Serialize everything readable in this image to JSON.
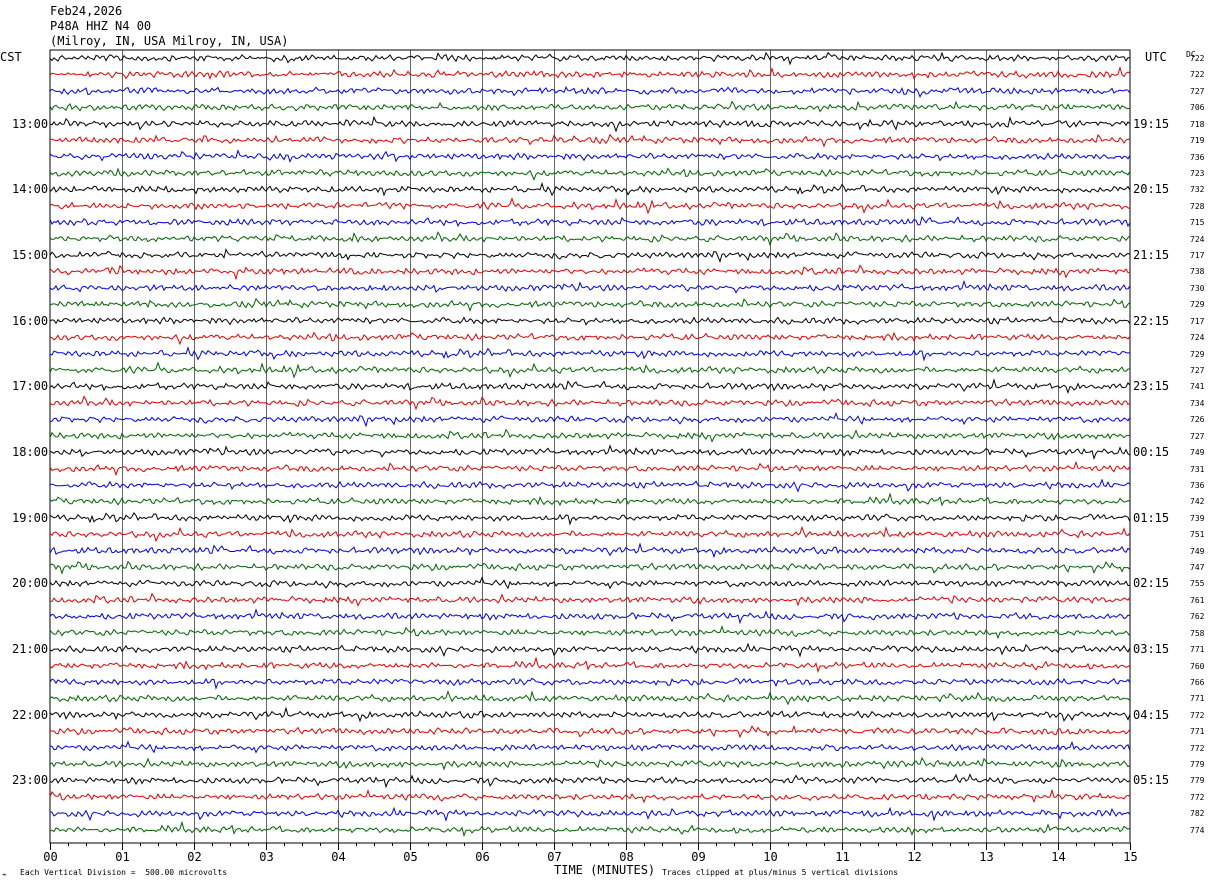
{
  "header": {
    "date": "Feb24,2026",
    "station": "P48A HHZ N4 00",
    "location": "(Milroy, IN, USA Milroy, IN, USA)"
  },
  "left_tz": "CST",
  "right_tz": "UTC",
  "dc_title": "DC",
  "footer": {
    "scale": "Each Vertical Division =  500.00 microvolts",
    "clip": "Traces clipped at plus/minus 5 vertical divisions",
    "xlabel": "TIME (MINUTES)"
  },
  "colors": {
    "trace_cycle": [
      "#000000",
      "#e00000",
      "#0000e0",
      "#006400"
    ],
    "grid": "#000000"
  },
  "chart_data": {
    "type": "line",
    "title": "P48A HHZ N4 00",
    "xlabel": "TIME (MINUTES)",
    "xlim": [
      0,
      15
    ],
    "x_ticks": [
      "00",
      "01",
      "02",
      "03",
      "04",
      "05",
      "06",
      "07",
      "08",
      "09",
      "10",
      "11",
      "12",
      "13",
      "14",
      "15"
    ],
    "left_time_labels": [
      "13:00",
      "14:00",
      "15:00",
      "16:00",
      "17:00",
      "18:00",
      "19:00",
      "20:00",
      "21:00",
      "22:00",
      "23:00"
    ],
    "right_time_labels": [
      "19:15",
      "20:15",
      "21:15",
      "22:15",
      "23:15",
      "00:15",
      "01:15",
      "02:15",
      "03:15",
      "04:15",
      "05:15"
    ],
    "trace_count": 48,
    "dc_offsets": [
      722,
      722,
      727,
      706,
      718,
      719,
      736,
      723,
      732,
      728,
      715,
      724,
      717,
      738,
      730,
      729,
      717,
      724,
      729,
      727,
      741,
      734,
      726,
      727,
      749,
      731,
      736,
      742,
      739,
      751,
      749,
      747,
      755,
      761,
      762,
      758,
      771,
      760,
      766,
      771,
      772,
      771,
      772,
      779,
      779,
      772,
      782,
      774
    ]
  }
}
